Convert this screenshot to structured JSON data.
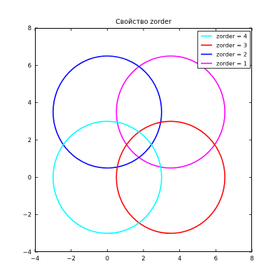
{
  "chart_data": {
    "type": "line",
    "title": "Свойство zorder",
    "xlim": [
      -4,
      8
    ],
    "ylim": [
      -4,
      8
    ],
    "xticks": [
      "−4",
      "−2",
      "0",
      "2",
      "4",
      "6",
      "8"
    ],
    "yticks": [
      "−4",
      "−2",
      "0",
      "2",
      "4",
      "6",
      "8"
    ],
    "grid": false,
    "legend": "top-right",
    "series": [
      {
        "name": "zorder = 4",
        "color": "#00ffff",
        "center": [
          0,
          0
        ],
        "radius": 3
      },
      {
        "name": "zorder = 3",
        "color": "#ff0000",
        "center": [
          3.5,
          0
        ],
        "radius": 3
      },
      {
        "name": "zorder = 2",
        "color": "#0000ff",
        "center": [
          0,
          3.5
        ],
        "radius": 3
      },
      {
        "name": "zorder = 1",
        "color": "#ff00ff",
        "center": [
          3.5,
          3.5
        ],
        "radius": 3
      }
    ]
  }
}
